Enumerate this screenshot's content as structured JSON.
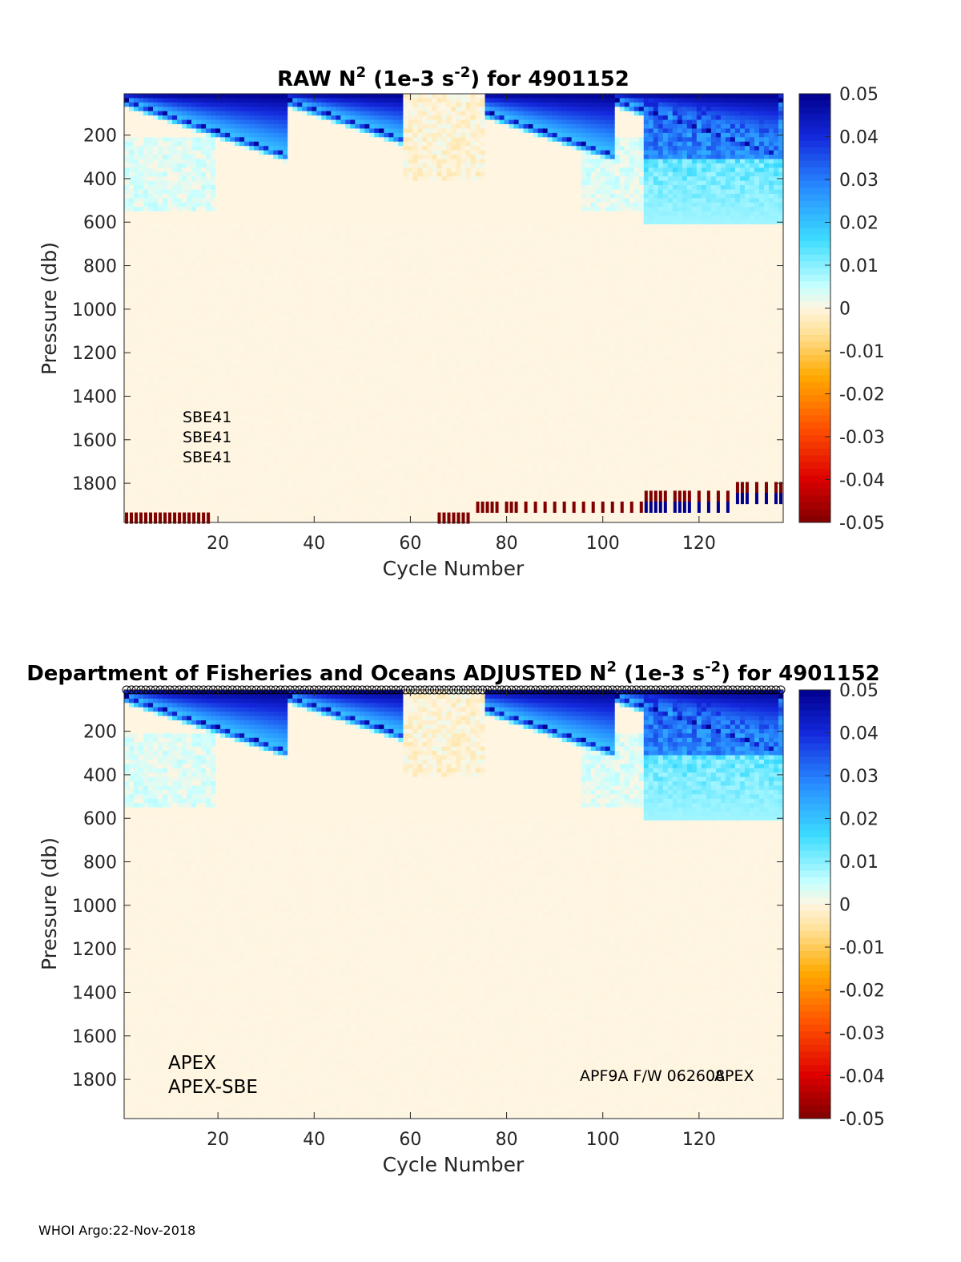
{
  "footer": "WHOI Argo:22-Nov-2018",
  "colors": {
    "background": "#ffffff",
    "field_zero": "#e0fce4",
    "positive_max": "#00008f",
    "negative_max": "#800000",
    "flag_blue": "#0000aa"
  },
  "chart_data": [
    {
      "type": "heatmap",
      "title_prefix": "RAW N",
      "title_sup1": "2",
      "title_mid": " (1e-3 s",
      "title_sup2": "-2",
      "title_suffix": ") for 4901152",
      "xlabel": "Cycle Number",
      "ylabel": "Pressure (db)",
      "xlim": [
        1,
        137
      ],
      "ylim": [
        1980,
        10
      ],
      "xticks": [
        20,
        40,
        60,
        80,
        100,
        120
      ],
      "yticks": [
        200,
        400,
        600,
        800,
        1000,
        1200,
        1400,
        1600,
        1800
      ],
      "clim": [
        -0.05,
        0.05
      ],
      "colorbar_ticks": [
        "0.05",
        "0.04",
        "0.03",
        "0.02",
        "0.01",
        "0",
        "-0.01",
        "-0.02",
        "-0.03",
        "-0.04",
        "-0.05"
      ],
      "annotations": [
        "SBE41",
        "SBE41",
        "SBE41"
      ],
      "flag_rows": [
        {
          "pressure_db": 1960,
          "cycles": [
            1,
            2,
            3,
            4,
            5,
            6,
            7,
            8,
            9,
            10,
            11,
            12,
            13,
            14,
            15,
            16,
            17,
            18
          ],
          "value": -0.05
        },
        {
          "pressure_db": 1960,
          "cycles": [
            66,
            67,
            68,
            69,
            70,
            71,
            72
          ],
          "value": -0.05
        },
        {
          "pressure_db": 1910,
          "cycles": [
            74,
            75,
            76,
            77,
            78,
            80,
            81,
            82,
            84,
            86,
            88,
            90,
            92,
            94,
            96,
            98,
            100,
            102,
            104,
            106,
            108
          ],
          "value": -0.05
        },
        {
          "pressure_db": 1860,
          "cycles": [
            109,
            110,
            111,
            112,
            113,
            115,
            116,
            117,
            118,
            120,
            122,
            124,
            126
          ],
          "value": -0.05
        },
        {
          "pressure_db": 1910,
          "cycles": [
            109,
            110,
            111,
            112,
            113,
            115,
            116,
            117,
            118,
            120,
            122,
            124,
            126
          ],
          "value": 0.05
        },
        {
          "pressure_db": 1820,
          "cycles": [
            128,
            129,
            130,
            132,
            134,
            136,
            137
          ],
          "value": -0.05
        },
        {
          "pressure_db": 1870,
          "cycles": [
            128,
            129,
            130,
            132,
            134,
            136,
            137
          ],
          "value": 0.05
        }
      ]
    },
    {
      "type": "heatmap",
      "title_prefix": "Department of Fisheries and Oceans  ADJUSTED N",
      "title_sup1": "2",
      "title_mid": " (1e-3 s",
      "title_sup2": "-2",
      "title_suffix": ") for 4901152",
      "xlabel": "Cycle Number",
      "ylabel": "Pressure (db)",
      "xlim": [
        1,
        137
      ],
      "ylim": [
        1980,
        10
      ],
      "xticks": [
        20,
        40,
        60,
        80,
        100,
        120
      ],
      "yticks": [
        200,
        400,
        600,
        800,
        1000,
        1200,
        1400,
        1600,
        1800
      ],
      "clim": [
        -0.05,
        0.05
      ],
      "colorbar_ticks": [
        "0.05",
        "0.04",
        "0.03",
        "0.02",
        "0.01",
        "0",
        "-0.01",
        "-0.02",
        "-0.03",
        "-0.04",
        "-0.05"
      ],
      "annotations_left": [
        "APEX",
        "APEX-SBE"
      ],
      "annotation_right_a": "APF9A F/W 062608",
      "annotation_right_b": "APEX",
      "marker_cycles_count": 137
    }
  ]
}
